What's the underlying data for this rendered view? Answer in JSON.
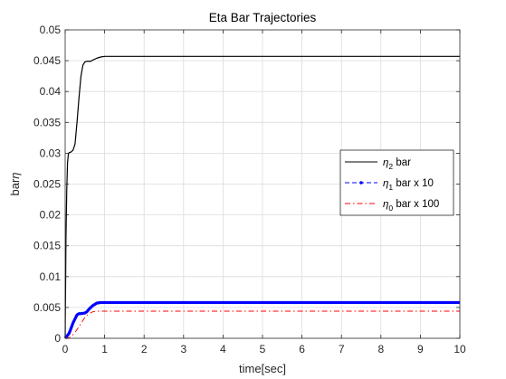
{
  "chart_data": {
    "type": "line",
    "title": "Eta Bar Trajectories",
    "xlabel": "time[sec]",
    "ylabel": "bar",
    "ylabel_symbol": "η",
    "xlim": [
      0,
      10
    ],
    "ylim": [
      0,
      0.05
    ],
    "xticks": [
      0,
      1,
      2,
      3,
      4,
      5,
      6,
      7,
      8,
      9,
      10
    ],
    "yticks": [
      0,
      0.005,
      0.01,
      0.015,
      0.02,
      0.025,
      0.03,
      0.035,
      0.04,
      0.045,
      0.05
    ],
    "ytick_labels": [
      "0",
      "0.005",
      "0.01",
      "0.015",
      "0.02",
      "0.025",
      "0.03",
      "0.035",
      "0.04",
      "0.045",
      "0.05"
    ],
    "grid": true,
    "legend_position": "right",
    "series": [
      {
        "name": "η2 bar",
        "legend_symbol": "η",
        "legend_subscript": "2",
        "legend_suffix": " bar",
        "color": "#000000",
        "style": "solid",
        "x": [
          0,
          0.01,
          0.02,
          0.04,
          0.06,
          0.08,
          0.1,
          0.15,
          0.2,
          0.25,
          0.3,
          0.35,
          0.4,
          0.45,
          0.5,
          0.55,
          0.6,
          0.65,
          0.7,
          0.8,
          0.9,
          1.0,
          1.1,
          1.2,
          1.5,
          2,
          3,
          4,
          5,
          6,
          7,
          8,
          9,
          10
        ],
        "y": [
          0,
          0.008,
          0.016,
          0.024,
          0.0285,
          0.0298,
          0.0301,
          0.0302,
          0.0305,
          0.0315,
          0.035,
          0.039,
          0.0425,
          0.0443,
          0.0448,
          0.0449,
          0.0449,
          0.0449,
          0.0451,
          0.0454,
          0.0456,
          0.0457,
          0.0457,
          0.0457,
          0.0457,
          0.0457,
          0.0457,
          0.0457,
          0.0457,
          0.0457,
          0.0457,
          0.0457,
          0.0457,
          0.0457
        ]
      },
      {
        "name": "η1 bar x 10",
        "legend_symbol": "η",
        "legend_subscript": "1",
        "legend_suffix": " bar x 10",
        "color": "#0000ff",
        "style": "dashed-dot-marker",
        "x": [
          0,
          0.1,
          0.2,
          0.3,
          0.35,
          0.4,
          0.5,
          0.55,
          0.6,
          0.7,
          0.8,
          0.9,
          1.0,
          1.1,
          1.5,
          2,
          3,
          4,
          5,
          6,
          7,
          8,
          9,
          10
        ],
        "y": [
          0,
          0.0008,
          0.0025,
          0.0038,
          0.004,
          0.004,
          0.0041,
          0.0043,
          0.0047,
          0.0053,
          0.0057,
          0.0058,
          0.0058,
          0.0058,
          0.0058,
          0.0058,
          0.0058,
          0.0058,
          0.0058,
          0.0058,
          0.0058,
          0.0058,
          0.0058,
          0.0058
        ]
      },
      {
        "name": "η0 bar x 100",
        "legend_symbol": "η",
        "legend_subscript": "0",
        "legend_suffix": " bar x 100",
        "color": "#ff0000",
        "style": "dashdot",
        "x": [
          0,
          0.1,
          0.2,
          0.3,
          0.4,
          0.5,
          0.6,
          0.7,
          0.8,
          0.9,
          1.0,
          2,
          3,
          4,
          5,
          6,
          7,
          8,
          9,
          10
        ],
        "y": [
          0,
          0.0001,
          0.0006,
          0.0014,
          0.0024,
          0.0034,
          0.004,
          0.0043,
          0.0044,
          0.0044,
          0.0044,
          0.0044,
          0.0044,
          0.0044,
          0.0044,
          0.0044,
          0.0044,
          0.0044,
          0.0044,
          0.0044
        ]
      }
    ]
  }
}
